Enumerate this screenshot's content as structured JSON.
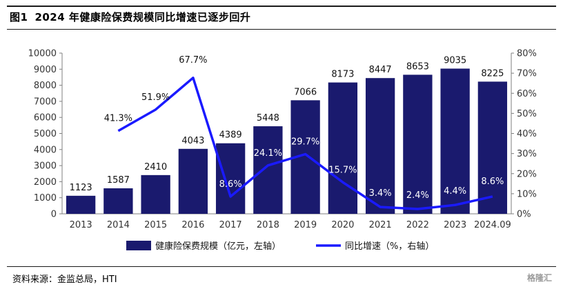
{
  "figure": {
    "number": "图1",
    "title": "2024 年健康险保费规模同比增速已逐步回升",
    "source": "资料来源：金监总局，HTI",
    "watermark": "格隆汇"
  },
  "colors": {
    "bar": "#1a1a6e",
    "line": "#1a1aff"
  },
  "chart_data": {
    "type": "bar",
    "categories": [
      "2013",
      "2014",
      "2015",
      "2016",
      "2017",
      "2018",
      "2019",
      "2020",
      "2021",
      "2022",
      "2023",
      "2024.09"
    ],
    "series": [
      {
        "name": "健康险保费规模（亿元，左轴）",
        "type": "bar",
        "axis": "left",
        "values": [
          1123,
          1587,
          2410,
          4043,
          4389,
          5448,
          7066,
          8173,
          8447,
          8653,
          9035,
          8225
        ],
        "labels": [
          "1123",
          "1587",
          "2410",
          "4043",
          "4389",
          "5448",
          "7066",
          "8173",
          "8447",
          "8653",
          "9035",
          "8225"
        ]
      },
      {
        "name": "同比增速（%，右轴）",
        "type": "line",
        "axis": "right",
        "values": [
          null,
          41.3,
          51.9,
          67.7,
          8.6,
          24.1,
          29.7,
          15.7,
          3.4,
          2.4,
          4.4,
          8.6
        ],
        "labels": [
          "",
          "41.3%",
          "51.9%",
          "67.7%",
          "8.6%",
          "24.1%",
          "29.7%",
          "15.7%",
          "3.4%",
          "2.4%",
          "4.4%",
          "8.6%"
        ]
      }
    ],
    "y_left": {
      "min": 0,
      "max": 10000,
      "ticks": [
        "0",
        "1000",
        "2000",
        "3000",
        "4000",
        "5000",
        "6000",
        "7000",
        "8000",
        "9000",
        "10000"
      ]
    },
    "y_right": {
      "min": 0,
      "max": 80,
      "ticks": [
        "0%",
        "10%",
        "20%",
        "30%",
        "40%",
        "50%",
        "60%",
        "70%",
        "80%"
      ]
    },
    "legend_position": "bottom",
    "grid": false
  }
}
